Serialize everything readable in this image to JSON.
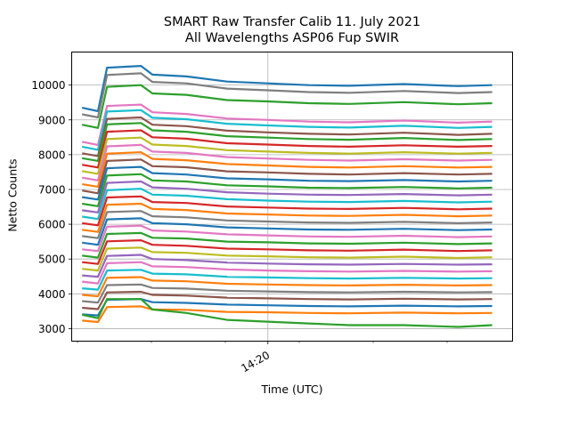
{
  "chart_data": {
    "type": "line",
    "title": "SMART Raw Transfer Calib 11. July 2021",
    "subtitle": "All Wavelengths ASP06 Fup SWIR",
    "xlabel": "Time (UTC)",
    "ylabel": "Netto Counts",
    "xlim": [
      "14:12:47",
      "14:29:00"
    ],
    "ylim": [
      2640,
      10950
    ],
    "x_tick_labels": [
      "14:20"
    ],
    "y_ticks": [
      3000,
      4000,
      5000,
      6000,
      7000,
      8000,
      9000,
      10000
    ],
    "grid": true,
    "legend": "none",
    "x": [
      "14:13:10",
      "14:13:45",
      "14:14:05",
      "14:15:20",
      "14:15:45",
      "14:17:00",
      "14:18:30",
      "14:20:00",
      "14:21:30",
      "14:23:00",
      "14:25:00",
      "14:27:00",
      "14:28:15"
    ],
    "colors": [
      "#1f77b4",
      "#ff7f0e",
      "#2ca02c",
      "#d62728",
      "#9467bd",
      "#8c564b",
      "#e377c2",
      "#7f7f7f",
      "#bcbd22",
      "#17becf"
    ],
    "series": [
      {
        "color": "#1f77b4",
        "values": [
          9350,
          9250,
          10500,
          10550,
          10300,
          10250,
          10100,
          10050,
          10000,
          9980,
          10030,
          9970,
          10000
        ]
      },
      {
        "color": "#7f7f7f",
        "values": [
          9160,
          9070,
          10290,
          10340,
          10090,
          10050,
          9900,
          9850,
          9800,
          9780,
          9830,
          9770,
          9800
        ]
      },
      {
        "color": "#2ca02c",
        "values": [
          8860,
          8770,
          9950,
          10000,
          9760,
          9720,
          9570,
          9530,
          9480,
          9460,
          9510,
          9450,
          9480
        ]
      },
      {
        "color": "#e377c2",
        "values": [
          8370,
          8280,
          9400,
          9440,
          9220,
          9170,
          9040,
          9000,
          8950,
          8930,
          8980,
          8920,
          8950
        ]
      },
      {
        "color": "#17becf",
        "values": [
          8230,
          8140,
          9240,
          9280,
          9060,
          9020,
          8890,
          8840,
          8800,
          8780,
          8830,
          8770,
          8800
        ]
      },
      {
        "color": "#8c564b",
        "values": [
          8040,
          7960,
          9030,
          9070,
          8860,
          8820,
          8690,
          8640,
          8600,
          8580,
          8630,
          8570,
          8600
        ]
      },
      {
        "color": "#2ca02c",
        "values": [
          7900,
          7820,
          8870,
          8910,
          8700,
          8660,
          8530,
          8490,
          8450,
          8430,
          8480,
          8420,
          8450
        ]
      },
      {
        "color": "#d62728",
        "values": [
          7710,
          7630,
          8660,
          8700,
          8500,
          8460,
          8330,
          8290,
          8250,
          8230,
          8270,
          8230,
          8250
        ]
      },
      {
        "color": "#bcbd22",
        "values": [
          7530,
          7450,
          8450,
          8490,
          8290,
          8250,
          8130,
          8090,
          8050,
          8030,
          8070,
          8030,
          8050
        ]
      },
      {
        "color": "#e377c2",
        "values": [
          7340,
          7260,
          8240,
          8280,
          8090,
          8050,
          7930,
          7890,
          7850,
          7830,
          7870,
          7830,
          7850
        ]
      },
      {
        "color": "#ff7f0e",
        "values": [
          7150,
          7080,
          8030,
          8070,
          7880,
          7840,
          7730,
          7690,
          7650,
          7630,
          7670,
          7630,
          7650
        ]
      },
      {
        "color": "#8c564b",
        "values": [
          6970,
          6890,
          7820,
          7860,
          7670,
          7640,
          7520,
          7490,
          7450,
          7430,
          7470,
          7430,
          7450
        ]
      },
      {
        "color": "#1f77b4",
        "values": [
          6780,
          6710,
          7610,
          7650,
          7470,
          7430,
          7320,
          7290,
          7250,
          7240,
          7270,
          7230,
          7250
        ]
      },
      {
        "color": "#2ca02c",
        "values": [
          6590,
          6520,
          7400,
          7440,
          7260,
          7230,
          7120,
          7090,
          7050,
          7040,
          7070,
          7030,
          7050
        ]
      },
      {
        "color": "#9467bd",
        "values": [
          6400,
          6340,
          7190,
          7230,
          7060,
          7020,
          6920,
          6880,
          6850,
          6840,
          6870,
          6830,
          6850
        ]
      },
      {
        "color": "#17becf",
        "values": [
          6220,
          6150,
          6980,
          7020,
          6850,
          6820,
          6720,
          6680,
          6650,
          6640,
          6670,
          6630,
          6650
        ]
      },
      {
        "color": "#d62728",
        "values": [
          6030,
          5970,
          6770,
          6800,
          6640,
          6610,
          6510,
          6480,
          6450,
          6440,
          6470,
          6430,
          6450
        ]
      },
      {
        "color": "#ff7f0e",
        "values": [
          5840,
          5780,
          6560,
          6590,
          6440,
          6410,
          6310,
          6280,
          6250,
          6240,
          6270,
          6230,
          6250
        ]
      },
      {
        "color": "#7f7f7f",
        "values": [
          5660,
          5600,
          6350,
          6380,
          6230,
          6200,
          6110,
          6080,
          6050,
          6040,
          6070,
          6030,
          6050
        ]
      },
      {
        "color": "#1f77b4",
        "values": [
          5470,
          5410,
          6140,
          6170,
          6030,
          6000,
          5910,
          5880,
          5850,
          5840,
          5870,
          5830,
          5850
        ]
      },
      {
        "color": "#e377c2",
        "values": [
          5280,
          5230,
          5930,
          5960,
          5820,
          5790,
          5710,
          5680,
          5650,
          5640,
          5670,
          5630,
          5650
        ]
      },
      {
        "color": "#2ca02c",
        "values": [
          5100,
          5040,
          5720,
          5750,
          5610,
          5590,
          5500,
          5480,
          5450,
          5440,
          5470,
          5430,
          5450
        ]
      },
      {
        "color": "#d62728",
        "values": [
          4910,
          4860,
          5510,
          5540,
          5410,
          5380,
          5300,
          5280,
          5250,
          5240,
          5270,
          5230,
          5250
        ]
      },
      {
        "color": "#bcbd22",
        "values": [
          4720,
          4670,
          5300,
          5330,
          5200,
          5180,
          5100,
          5080,
          5050,
          5040,
          5070,
          5030,
          5050
        ]
      },
      {
        "color": "#9467bd",
        "values": [
          4530,
          4490,
          5090,
          5120,
          5000,
          4970,
          4900,
          4870,
          4850,
          4840,
          4860,
          4840,
          4850
        ]
      },
      {
        "color": "#e377c2",
        "values": [
          4350,
          4300,
          4880,
          4910,
          4790,
          4770,
          4700,
          4670,
          4650,
          4640,
          4660,
          4640,
          4650
        ]
      },
      {
        "color": "#17becf",
        "values": [
          4160,
          4120,
          4670,
          4690,
          4580,
          4560,
          4490,
          4470,
          4450,
          4440,
          4460,
          4440,
          4450
        ]
      },
      {
        "color": "#ff7f0e",
        "values": [
          3970,
          3930,
          4460,
          4480,
          4380,
          4360,
          4290,
          4270,
          4250,
          4240,
          4260,
          4240,
          4250
        ]
      },
      {
        "color": "#7f7f7f",
        "values": [
          3790,
          3750,
          4250,
          4270,
          4170,
          4150,
          4090,
          4070,
          4050,
          4040,
          4060,
          4040,
          4050
        ]
      },
      {
        "color": "#8c564b",
        "values": [
          3600,
          3560,
          4040,
          4060,
          3970,
          3950,
          3890,
          3870,
          3850,
          3840,
          3860,
          3840,
          3850
        ]
      },
      {
        "color": "#1f77b4",
        "values": [
          3410,
          3380,
          3830,
          3850,
          3760,
          3740,
          3690,
          3670,
          3650,
          3640,
          3660,
          3640,
          3650
        ]
      },
      {
        "color": "#ff7f0e",
        "values": [
          3230,
          3190,
          3620,
          3640,
          3550,
          3540,
          3480,
          3470,
          3450,
          3440,
          3460,
          3440,
          3450
        ]
      },
      {
        "color": "#2ca02c",
        "values": [
          3400,
          3300,
          3850,
          3850,
          3550,
          3450,
          3250,
          3200,
          3150,
          3100,
          3100,
          3050,
          3100
        ]
      }
    ]
  }
}
